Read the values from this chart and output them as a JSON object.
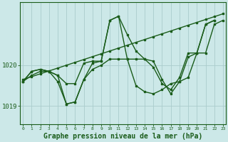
{
  "background_color": "#cce8e8",
  "grid_color": "#aacccc",
  "line_color": "#1a5c1a",
  "xlabel": "Graphe pression niveau de la mer (hPa)",
  "xlabel_fontsize": 7,
  "ylim": [
    1018.55,
    1021.55
  ],
  "xlim": [
    -0.3,
    23.3
  ],
  "yticks": [
    1019,
    1020
  ],
  "xticks": [
    0,
    1,
    2,
    3,
    4,
    5,
    6,
    7,
    8,
    9,
    10,
    11,
    12,
    13,
    14,
    15,
    16,
    17,
    18,
    19,
    20,
    21,
    22,
    23
  ],
  "series": [
    [
      1019.6,
      1019.85,
      1019.9,
      1019.85,
      1019.75,
      1019.55,
      1019.55,
      1020.05,
      1020.1,
      1020.1,
      1021.1,
      1021.2,
      1020.75,
      1020.35,
      1020.15,
      1019.95,
      1019.55,
      1019.4,
      1019.7,
      1020.3,
      1020.3,
      1021.0,
      1021.1
    ],
    [
      1019.6,
      1019.85,
      1019.9,
      1019.85,
      1019.75,
      1019.05,
      1019.1,
      1019.65,
      1019.9,
      1020.0,
      1020.15,
      1020.15,
      1020.15,
      1020.15,
      1020.15,
      1020.1,
      1019.65,
      1019.3,
      1019.6,
      1019.7,
      1020.3,
      1020.3,
      1021.0,
      1021.1
    ],
    [
      1019.6,
      1019.75,
      1019.85,
      1019.85,
      1019.6,
      1019.05,
      1019.1,
      1019.65,
      1020.05,
      1020.1,
      1021.1,
      1021.2,
      1020.15,
      1019.5,
      1019.35,
      1019.3,
      1019.4,
      1019.55,
      1019.6,
      1020.2,
      1020.3,
      1021.0,
      1021.1
    ],
    [
      1019.65,
      1019.72,
      1019.79,
      1019.86,
      1019.93,
      1020.0,
      1020.07,
      1020.14,
      1020.21,
      1020.28,
      1020.35,
      1020.42,
      1020.49,
      1020.56,
      1020.63,
      1020.7,
      1020.77,
      1020.84,
      1020.91,
      1020.98,
      1021.05,
      1021.12,
      1021.19,
      1021.26
    ]
  ],
  "series_x": [
    [
      0,
      1,
      2,
      3,
      4,
      5,
      6,
      7,
      8,
      9,
      10,
      11,
      12,
      13,
      14,
      15,
      16,
      17,
      18,
      19,
      20,
      21,
      22
    ],
    [
      0,
      1,
      2,
      3,
      4,
      5,
      6,
      7,
      8,
      9,
      10,
      11,
      12,
      13,
      14,
      15,
      16,
      17,
      18,
      19,
      20,
      21,
      22,
      23
    ],
    [
      0,
      1,
      2,
      3,
      4,
      5,
      6,
      7,
      8,
      9,
      10,
      11,
      12,
      13,
      14,
      15,
      16,
      17,
      18,
      19,
      20,
      21,
      22
    ],
    [
      0,
      1,
      2,
      3,
      4,
      5,
      6,
      7,
      8,
      9,
      10,
      11,
      12,
      13,
      14,
      15,
      16,
      17,
      18,
      19,
      20,
      21,
      22,
      23
    ]
  ],
  "marker": "s",
  "markersize": 2.0,
  "linewidth": 1.0
}
